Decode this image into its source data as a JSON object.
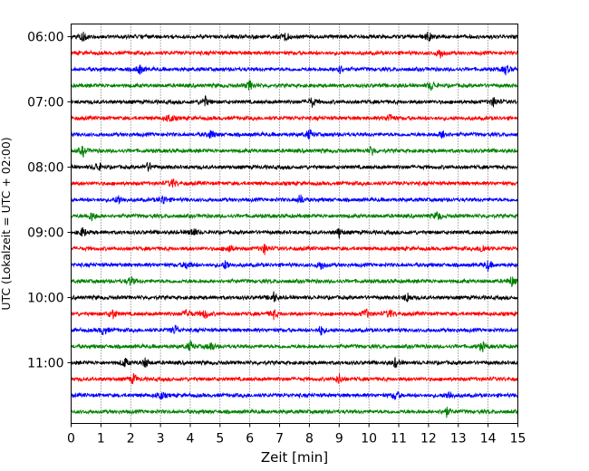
{
  "chart_data": {
    "type": "line",
    "title": "",
    "xlabel": "Zeit  [min]",
    "ylabel": "UTC (Lokalzeit = UTC + 02:00)",
    "xlim": [
      0,
      15
    ],
    "x_ticks": [
      0,
      1,
      2,
      3,
      4,
      5,
      6,
      7,
      8,
      9,
      10,
      11,
      12,
      13,
      14,
      15
    ],
    "x_tick_labels": [
      "0",
      "1",
      "2",
      "3",
      "4",
      "5",
      "6",
      "7",
      "8",
      "9",
      "10",
      "11",
      "12",
      "13",
      "14",
      "15"
    ],
    "y_tick_labels": [
      "06:00",
      "07:00",
      "08:00",
      "09:00",
      "10:00",
      "11:00"
    ],
    "trace_interval_min": 15,
    "grid": "vertical dotted at each minute",
    "color_cycle": [
      "#000000",
      "#ff0000",
      "#0000ff",
      "#008000"
    ],
    "rows": [
      {
        "start": "06:00",
        "color": "#000000",
        "events": [
          0.4,
          7.2,
          12.0
        ]
      },
      {
        "start": "06:15",
        "color": "#ff0000",
        "events": [
          12.4
        ]
      },
      {
        "start": "06:30",
        "color": "#0000ff",
        "events": [
          2.3,
          9.0,
          14.6
        ]
      },
      {
        "start": "06:45",
        "color": "#008000",
        "events": [
          6.0,
          12.1
        ]
      },
      {
        "start": "07:00",
        "color": "#000000",
        "events": [
          4.5,
          8.1,
          14.2
        ]
      },
      {
        "start": "07:15",
        "color": "#ff0000",
        "events": [
          3.3,
          10.7
        ]
      },
      {
        "start": "07:30",
        "color": "#0000ff",
        "events": [
          4.7,
          8.0,
          12.5
        ]
      },
      {
        "start": "07:45",
        "color": "#008000",
        "events": [
          0.4,
          10.1
        ]
      },
      {
        "start": "08:00",
        "color": "#000000",
        "events": [
          0.9,
          2.6
        ]
      },
      {
        "start": "08:15",
        "color": "#ff0000",
        "events": [
          3.4
        ]
      },
      {
        "start": "08:30",
        "color": "#0000ff",
        "events": [
          1.6,
          3.1,
          7.7
        ]
      },
      {
        "start": "08:45",
        "color": "#008000",
        "events": [
          0.7,
          12.3
        ]
      },
      {
        "start": "09:00",
        "color": "#000000",
        "events": [
          0.4,
          4.1,
          9.0
        ]
      },
      {
        "start": "09:15",
        "color": "#ff0000",
        "events": [
          5.3,
          6.5,
          13.8
        ]
      },
      {
        "start": "09:30",
        "color": "#0000ff",
        "events": [
          3.9,
          5.2,
          8.4,
          14.0
        ]
      },
      {
        "start": "09:45",
        "color": "#008000",
        "events": [
          2.0,
          14.8
        ]
      },
      {
        "start": "10:00",
        "color": "#000000",
        "events": [
          6.8,
          11.3
        ]
      },
      {
        "start": "10:15",
        "color": "#ff0000",
        "events": [
          1.4,
          3.9,
          4.5,
          6.8,
          9.9,
          10.7
        ]
      },
      {
        "start": "10:30",
        "color": "#0000ff",
        "events": [
          1.1,
          3.5,
          8.4
        ]
      },
      {
        "start": "10:45",
        "color": "#008000",
        "events": [
          4.0,
          4.7,
          13.8
        ]
      },
      {
        "start": "11:00",
        "color": "#000000",
        "events": [
          1.8,
          2.5,
          10.9
        ]
      },
      {
        "start": "11:15",
        "color": "#ff0000",
        "events": [
          2.1,
          9.0
        ]
      },
      {
        "start": "11:30",
        "color": "#0000ff",
        "events": [
          3.0,
          10.9,
          12.7
        ]
      },
      {
        "start": "11:45",
        "color": "#008000",
        "events": [
          12.6
        ]
      }
    ]
  }
}
